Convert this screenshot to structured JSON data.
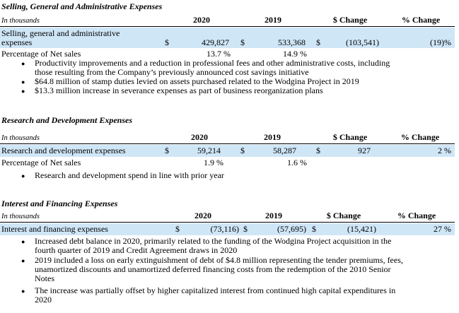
{
  "sga": {
    "title": "Selling, General and Administrative Expenses",
    "unit": "In thousands",
    "headers": {
      "y2020": "2020",
      "y2019": "2019",
      "change": "$ Change",
      "pct": "% Change"
    },
    "row_label_1": "Selling, general and administrative",
    "row_label_2": "expenses",
    "cur": "$",
    "v2020": "429,827",
    "v2019": "533,368",
    "change": "(103,541)",
    "pct": "(19)%",
    "pct_label": "Percentage of Net sales",
    "pct2020": "13.7 %",
    "pct2019": "14.9 %",
    "bullets": [
      [
        "Productivity improvements and a reduction in professional fees and other administrative costs, including",
        "those resulting from the Company’s previously announced cost savings initiative"
      ],
      [
        "$64.8 million of stamp duties levied on assets purchased related to the Wodgina Project in 2019"
      ],
      [
        "$13.3 million increase in severance expenses as part of business reorganization plans"
      ]
    ]
  },
  "rd": {
    "title": "Research and Development Expenses",
    "unit": "In thousands",
    "headers": {
      "y2020": "2020",
      "y2019": "2019",
      "change": "$ Change",
      "pct": "% Change"
    },
    "row_label": "Research and development expenses",
    "cur": "$",
    "v2020": "59,214",
    "v2019": "58,287",
    "change": "927",
    "pct": "2 %",
    "pct_label": "Percentage of Net sales",
    "pct2020": "1.9 %",
    "pct2019": "1.6 %",
    "bullets": [
      [
        "Research and development spend in line with prior year"
      ]
    ]
  },
  "int": {
    "title": "Interest and Financing Expenses",
    "unit": "In thousands",
    "headers": {
      "y2020": "2020",
      "y2019": "2019",
      "change": "$ Change",
      "pct": "% Change"
    },
    "row_label": "Interest and financing expenses",
    "cur": "$",
    "v2020": "(73,116)",
    "v2019": "(57,695)",
    "change": "(15,421)",
    "pct": "27 %",
    "bullets": [
      [
        "Increased debt balance in 2020, primarily related to the funding of the Wodgina Project acquisition in the",
        "fourth quarter of 2019 and Credit Agreement draws in 2020"
      ],
      [
        "2019 included a loss on early extinguishment of debt of $4.8 million representing the tender premiums, fees,",
        "unamortized discounts and unamortized deferred financing costs from the redemption of the 2010 Senior",
        "Notes"
      ],
      [
        "The increase was partially offset by higher capitalized interest from continued high capital expenditures in",
        "2020"
      ]
    ]
  },
  "icons": {
    "bullet": "bullet-icon"
  }
}
